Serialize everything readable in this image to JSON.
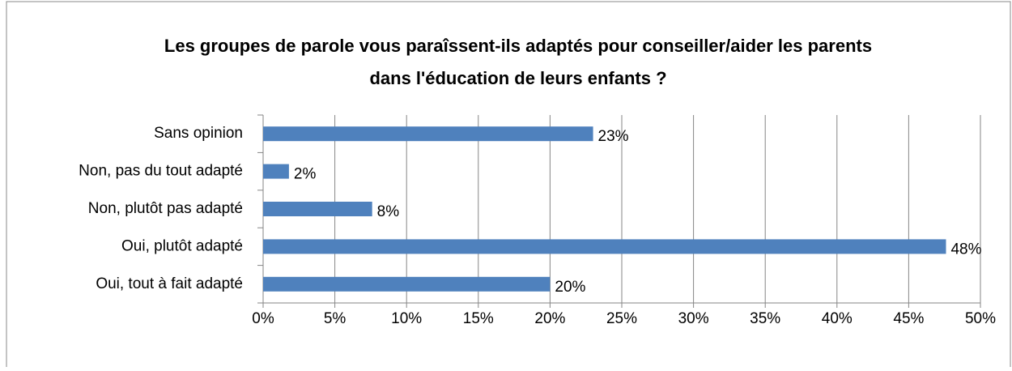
{
  "chart_data": {
    "type": "bar",
    "orientation": "horizontal",
    "title": "Les groupes de parole vous paraîssent-ils adaptés pour conseiller/aider les parents dans l'éducation de leurs enfants ?",
    "categories": [
      "Sans opinion",
      "Non, pas du tout adapté",
      "Non, plutôt pas adapté",
      "Oui, plutôt adapté",
      "Oui, tout à fait adapté"
    ],
    "values": [
      23,
      1.8,
      7.6,
      47.6,
      20
    ],
    "value_labels": [
      "23%",
      "2%",
      "8%",
      "48%",
      "20%"
    ],
    "color": "#4f81bd",
    "xlim": [
      0,
      50
    ],
    "xticks": [
      {
        "value": 0,
        "label": "0%"
      },
      {
        "value": 5,
        "label": "5%"
      },
      {
        "value": 10,
        "label": "10%"
      },
      {
        "value": 15,
        "label": "15%"
      },
      {
        "value": 20,
        "label": "20%"
      },
      {
        "value": 25,
        "label": "25%"
      },
      {
        "value": 30,
        "label": "30%"
      },
      {
        "value": 35,
        "label": "35%"
      },
      {
        "value": 40,
        "label": "40%"
      },
      {
        "value": 45,
        "label": "45%"
      },
      {
        "value": 50,
        "label": "50%"
      }
    ],
    "grid": true
  }
}
